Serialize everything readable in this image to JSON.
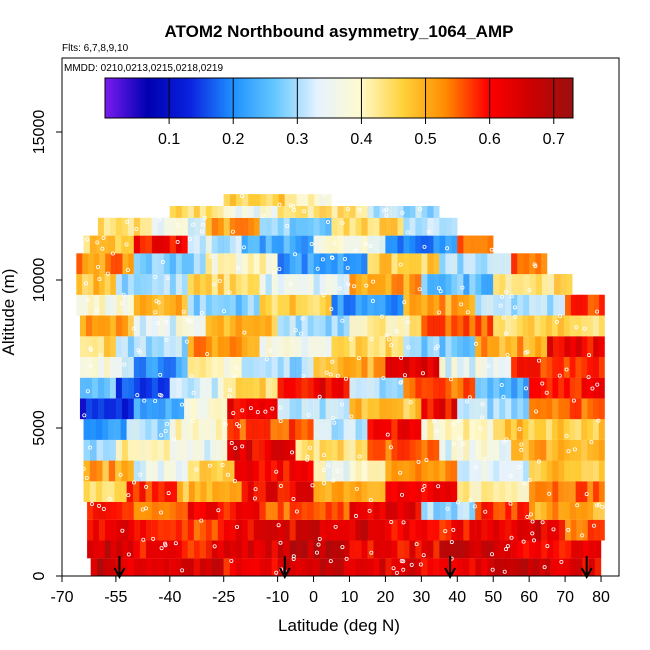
{
  "chart_data": {
    "type": "heatmap",
    "title": "ATOM2 Northbound asymmetry_1064_AMP",
    "subtitle_flights": "Flts: 6,7,8,9,10",
    "subtitle_dates": "MMDD: 0210,0213,0215,0218,0219",
    "xlabel": "Latitude (deg N)",
    "ylabel": "Altitude (m)",
    "xlim": [
      -70,
      85
    ],
    "ylim": [
      0,
      17500
    ],
    "x_ticks": [
      -70,
      -55,
      -40,
      -25,
      -10,
      0,
      10,
      20,
      30,
      40,
      50,
      60,
      70,
      80
    ],
    "y_ticks": [
      0,
      5000,
      10000,
      15000
    ],
    "colorbar": {
      "range": [
        0.0,
        0.73
      ],
      "ticks": [
        0.1,
        0.2,
        0.3,
        0.4,
        0.5,
        0.6,
        0.7
      ],
      "colors": [
        "#7a1cf0",
        "#0000b0",
        "#0a22e0",
        "#1e90ff",
        "#66c8ff",
        "#e6f2ff",
        "#fffacd",
        "#ffd23a",
        "#ff8c00",
        "#ff0000",
        "#cd0000",
        "#9a1010"
      ]
    },
    "arrows_latitude": [
      -54,
      -8,
      38,
      76
    ],
    "bands": [
      {
        "alt": [
          0,
          600
        ],
        "segments": [
          [
            -62,
            -55,
            0.68
          ],
          [
            -55,
            -40,
            0.62
          ],
          [
            -40,
            -25,
            0.65
          ],
          [
            -25,
            -10,
            0.6
          ],
          [
            -10,
            10,
            0.66
          ],
          [
            10,
            30,
            0.64
          ],
          [
            30,
            50,
            0.62
          ],
          [
            50,
            66,
            0.67
          ],
          [
            66,
            80,
            0.63
          ]
        ]
      },
      {
        "alt": [
          600,
          1200
        ],
        "segments": [
          [
            -63,
            -50,
            0.66
          ],
          [
            -50,
            -30,
            0.6
          ],
          [
            -30,
            -10,
            0.64
          ],
          [
            -10,
            10,
            0.68
          ],
          [
            10,
            35,
            0.62
          ],
          [
            35,
            55,
            0.66
          ],
          [
            55,
            80,
            0.6
          ]
        ]
      },
      {
        "alt": [
          1200,
          1900
        ],
        "segments": [
          [
            -63,
            -45,
            0.62
          ],
          [
            -45,
            -25,
            0.57
          ],
          [
            -25,
            -5,
            0.63
          ],
          [
            -5,
            20,
            0.66
          ],
          [
            20,
            45,
            0.6
          ],
          [
            45,
            70,
            0.64
          ],
          [
            70,
            81,
            0.55
          ]
        ]
      },
      {
        "alt": [
          1900,
          2500
        ],
        "segments": [
          [
            -63,
            -50,
            0.58
          ],
          [
            -50,
            -35,
            0.52
          ],
          [
            -35,
            -15,
            0.6
          ],
          [
            -15,
            10,
            0.55
          ],
          [
            10,
            30,
            0.63
          ],
          [
            30,
            45,
            0.3
          ],
          [
            45,
            60,
            0.58
          ],
          [
            60,
            81,
            0.5
          ]
        ]
      },
      {
        "alt": [
          2500,
          3200
        ],
        "segments": [
          [
            -64,
            -52,
            0.45
          ],
          [
            -52,
            -38,
            0.58
          ],
          [
            -38,
            -20,
            0.48
          ],
          [
            -20,
            0,
            0.62
          ],
          [
            0,
            20,
            0.52
          ],
          [
            20,
            40,
            0.6
          ],
          [
            40,
            60,
            0.42
          ],
          [
            60,
            81,
            0.55
          ]
        ]
      },
      {
        "alt": [
          3200,
          3900
        ],
        "segments": [
          [
            -64,
            -50,
            0.5
          ],
          [
            -50,
            -35,
            0.35
          ],
          [
            -35,
            -22,
            0.45
          ],
          [
            -22,
            0,
            0.6
          ],
          [
            0,
            20,
            0.38
          ],
          [
            20,
            40,
            0.52
          ],
          [
            40,
            60,
            0.33
          ],
          [
            60,
            81,
            0.48
          ]
        ]
      },
      {
        "alt": [
          3900,
          4600
        ],
        "segments": [
          [
            -64,
            -55,
            0.3
          ],
          [
            -55,
            -40,
            0.42
          ],
          [
            -40,
            -24,
            0.35
          ],
          [
            -24,
            -5,
            0.63
          ],
          [
            -5,
            15,
            0.44
          ],
          [
            15,
            35,
            0.55
          ],
          [
            35,
            55,
            0.36
          ],
          [
            55,
            81,
            0.5
          ]
        ]
      },
      {
        "alt": [
          4600,
          5300
        ],
        "segments": [
          [
            -64,
            -52,
            0.2
          ],
          [
            -52,
            -40,
            0.3
          ],
          [
            -40,
            -24,
            0.4
          ],
          [
            -24,
            0,
            0.56
          ],
          [
            0,
            15,
            0.32
          ],
          [
            15,
            30,
            0.6
          ],
          [
            30,
            50,
            0.4
          ],
          [
            50,
            81,
            0.47
          ]
        ]
      },
      {
        "alt": [
          5300,
          6000
        ],
        "segments": [
          [
            -65,
            -50,
            0.12
          ],
          [
            -50,
            -36,
            0.25
          ],
          [
            -36,
            -24,
            0.38
          ],
          [
            -24,
            -10,
            0.62
          ],
          [
            -10,
            10,
            0.3
          ],
          [
            10,
            30,
            0.48
          ],
          [
            30,
            40,
            0.62
          ],
          [
            40,
            60,
            0.3
          ],
          [
            60,
            81,
            0.55
          ]
        ]
      },
      {
        "alt": [
          6000,
          6700
        ],
        "segments": [
          [
            -65,
            -55,
            0.28
          ],
          [
            -55,
            -40,
            0.15
          ],
          [
            -40,
            -25,
            0.34
          ],
          [
            -25,
            -10,
            0.45
          ],
          [
            -10,
            10,
            0.62
          ],
          [
            10,
            25,
            0.3
          ],
          [
            25,
            45,
            0.55
          ],
          [
            45,
            60,
            0.25
          ],
          [
            60,
            81,
            0.6
          ]
        ]
      },
      {
        "alt": [
          6700,
          7400
        ],
        "segments": [
          [
            -65,
            -50,
            0.36
          ],
          [
            -50,
            -35,
            0.22
          ],
          [
            -35,
            -20,
            0.4
          ],
          [
            -20,
            0,
            0.3
          ],
          [
            0,
            20,
            0.5
          ],
          [
            20,
            35,
            0.65
          ],
          [
            35,
            55,
            0.35
          ],
          [
            55,
            81,
            0.58
          ]
        ]
      },
      {
        "alt": [
          7400,
          8100
        ],
        "segments": [
          [
            -65,
            -55,
            0.45
          ],
          [
            -55,
            -35,
            0.3
          ],
          [
            -35,
            -15,
            0.52
          ],
          [
            -15,
            5,
            0.35
          ],
          [
            5,
            25,
            0.45
          ],
          [
            25,
            45,
            0.28
          ],
          [
            45,
            65,
            0.5
          ],
          [
            65,
            81,
            0.62
          ]
        ]
      },
      {
        "alt": [
          8100,
          8800
        ],
        "segments": [
          [
            -65,
            -50,
            0.5
          ],
          [
            -50,
            -30,
            0.35
          ],
          [
            -30,
            -10,
            0.48
          ],
          [
            -10,
            10,
            0.3
          ],
          [
            10,
            30,
            0.42
          ],
          [
            30,
            50,
            0.55
          ],
          [
            50,
            81,
            0.45
          ]
        ]
      },
      {
        "alt": [
          8800,
          9500
        ],
        "segments": [
          [
            -66,
            -50,
            0.38
          ],
          [
            -50,
            -35,
            0.5
          ],
          [
            -35,
            -15,
            0.28
          ],
          [
            -15,
            5,
            0.46
          ],
          [
            5,
            25,
            0.2
          ],
          [
            25,
            45,
            0.5
          ],
          [
            45,
            70,
            0.3
          ],
          [
            70,
            81,
            0.58
          ]
        ]
      },
      {
        "alt": [
          9500,
          10200
        ],
        "segments": [
          [
            -66,
            -55,
            0.48
          ],
          [
            -55,
            -35,
            0.3
          ],
          [
            -35,
            -15,
            0.45
          ],
          [
            -15,
            10,
            0.34
          ],
          [
            10,
            30,
            0.5
          ],
          [
            30,
            50,
            0.26
          ],
          [
            50,
            72,
            0.44
          ]
        ]
      },
      {
        "alt": [
          10200,
          10900
        ],
        "segments": [
          [
            -66,
            -50,
            0.52
          ],
          [
            -50,
            -30,
            0.28
          ],
          [
            -30,
            -10,
            0.4
          ],
          [
            -10,
            15,
            0.22
          ],
          [
            15,
            35,
            0.46
          ],
          [
            35,
            55,
            0.3
          ],
          [
            55,
            65,
            0.55
          ]
        ]
      },
      {
        "alt": [
          10900,
          11500
        ],
        "segments": [
          [
            -64,
            -50,
            0.46
          ],
          [
            -50,
            -35,
            0.6
          ],
          [
            -35,
            -20,
            0.32
          ],
          [
            -20,
            0,
            0.24
          ],
          [
            0,
            20,
            0.38
          ],
          [
            20,
            40,
            0.2
          ],
          [
            40,
            50,
            0.55
          ]
        ]
      },
      {
        "alt": [
          11500,
          12100
        ],
        "segments": [
          [
            -60,
            -45,
            0.44
          ],
          [
            -45,
            -30,
            0.36
          ],
          [
            -30,
            -15,
            0.5
          ],
          [
            -15,
            5,
            0.28
          ],
          [
            5,
            25,
            0.45
          ],
          [
            25,
            40,
            0.32
          ]
        ]
      },
      {
        "alt": [
          12100,
          12500
        ],
        "segments": [
          [
            -40,
            -25,
            0.45
          ],
          [
            -25,
            -10,
            0.36
          ],
          [
            -10,
            15,
            0.43
          ],
          [
            15,
            35,
            0.3
          ]
        ]
      },
      {
        "alt": [
          12500,
          12900
        ],
        "segments": [
          [
            -25,
            -8,
            0.47
          ],
          [
            -8,
            5,
            0.4
          ]
        ]
      }
    ]
  }
}
